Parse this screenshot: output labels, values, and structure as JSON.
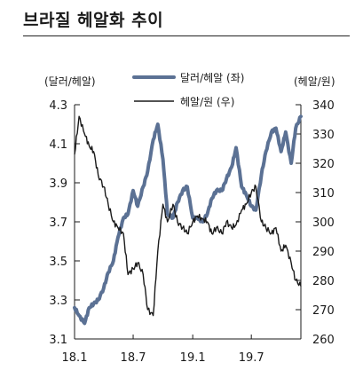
{
  "title": "브라질 헤알화 추이",
  "chart_data": {
    "type": "line",
    "left_unit": "(달러/헤알)",
    "right_unit": "(헤알/원)",
    "x_tick_labels": [
      "18.1",
      "18.7",
      "19.1",
      "19.7"
    ],
    "y_left": {
      "min": 3.1,
      "max": 4.3,
      "ticks": [
        "4.3",
        "4.1",
        "3.9",
        "3.7",
        "3.5",
        "3.3",
        "3.1"
      ]
    },
    "y_right": {
      "min": 260,
      "max": 340,
      "ticks": [
        "340",
        "330",
        "320",
        "310",
        "300",
        "290",
        "280",
        "270",
        "260"
      ]
    },
    "series": [
      {
        "name": "달러/헤알 (좌)",
        "axis": "left",
        "color": "#5b7194",
        "x": [
          "2018-01-01",
          "2018-01-15",
          "2018-02-01",
          "2018-02-15",
          "2018-03-01",
          "2018-03-15",
          "2018-04-01",
          "2018-04-15",
          "2018-05-01",
          "2018-05-15",
          "2018-06-01",
          "2018-06-15",
          "2018-07-01",
          "2018-07-15",
          "2018-08-01",
          "2018-08-15",
          "2018-09-01",
          "2018-09-15",
          "2018-10-01",
          "2018-10-15",
          "2018-11-01",
          "2018-11-15",
          "2018-12-01",
          "2018-12-15",
          "2019-01-01",
          "2019-01-15",
          "2019-02-01",
          "2019-02-15",
          "2019-03-01",
          "2019-03-15",
          "2019-04-01",
          "2019-04-15",
          "2019-05-01",
          "2019-05-15",
          "2019-06-01",
          "2019-06-15",
          "2019-07-01",
          "2019-07-15",
          "2019-08-01",
          "2019-08-15",
          "2019-09-01",
          "2019-09-15",
          "2019-10-01",
          "2019-10-15",
          "2019-11-01",
          "2019-11-15",
          "2019-12-01"
        ],
        "values": [
          3.26,
          3.22,
          3.18,
          3.26,
          3.28,
          3.3,
          3.36,
          3.44,
          3.5,
          3.62,
          3.72,
          3.74,
          3.86,
          3.78,
          3.88,
          3.96,
          4.12,
          4.2,
          4.02,
          3.74,
          3.72,
          3.8,
          3.86,
          3.88,
          3.72,
          3.72,
          3.7,
          3.74,
          3.82,
          3.86,
          3.86,
          3.92,
          3.98,
          4.08,
          3.88,
          3.84,
          3.78,
          3.76,
          3.94,
          4.06,
          4.16,
          4.18,
          4.06,
          4.16,
          4.0,
          4.18,
          4.24
        ]
      },
      {
        "name": "헤알/원 (우)",
        "axis": "right",
        "color": "#1a1a1a",
        "x": [
          "2018-01-01",
          "2018-01-15",
          "2018-02-01",
          "2018-02-15",
          "2018-03-01",
          "2018-03-15",
          "2018-04-01",
          "2018-04-15",
          "2018-05-01",
          "2018-05-15",
          "2018-06-01",
          "2018-06-15",
          "2018-07-01",
          "2018-07-15",
          "2018-08-01",
          "2018-08-15",
          "2018-09-01",
          "2018-09-15",
          "2018-10-01",
          "2018-10-15",
          "2018-11-01",
          "2018-11-15",
          "2018-12-01",
          "2018-12-15",
          "2019-01-01",
          "2019-01-15",
          "2019-02-01",
          "2019-02-15",
          "2019-03-01",
          "2019-03-15",
          "2019-04-01",
          "2019-04-15",
          "2019-05-01",
          "2019-05-15",
          "2019-06-01",
          "2019-06-15",
          "2019-07-01",
          "2019-07-15",
          "2019-08-01",
          "2019-08-15",
          "2019-09-01",
          "2019-09-15",
          "2019-10-01",
          "2019-10-15",
          "2019-11-01",
          "2019-11-15",
          "2019-12-01"
        ],
        "values": [
          323,
          336,
          330,
          326,
          324,
          316,
          312,
          306,
          300,
          298,
          296,
          282,
          284,
          286,
          282,
          270,
          268,
          290,
          306,
          300,
          306,
          300,
          298,
          296,
          300,
          302,
          301,
          300,
          296,
          298,
          296,
          300,
          298,
          299,
          304,
          306,
          310,
          312,
          300,
          298,
          296,
          298,
          290,
          292,
          286,
          280,
          278
        ]
      }
    ],
    "legend": "top-center",
    "grid": false
  }
}
